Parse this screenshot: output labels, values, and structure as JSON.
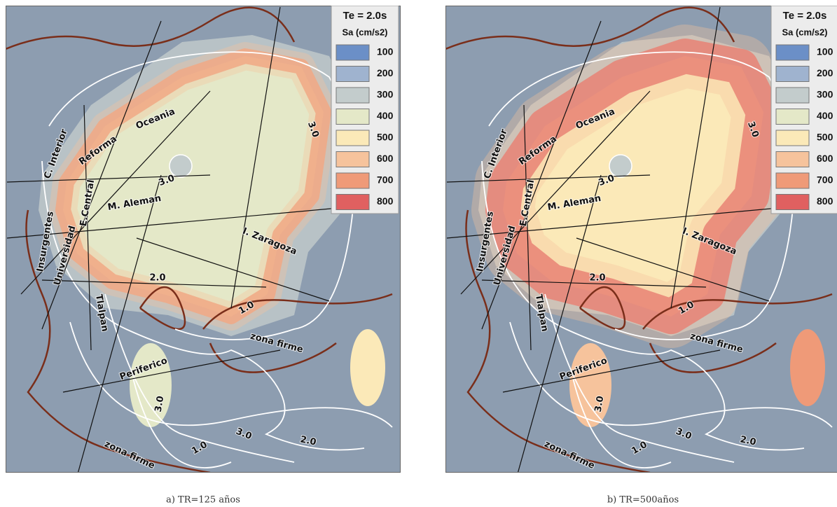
{
  "map_labels": [
    "C. Interior",
    "Reforma",
    "Oceania",
    "3.0",
    "E.Central",
    "M. Aleman",
    "Insurgentes",
    "Universidad",
    "I. Zaragoza",
    "2.0",
    "1.0",
    "Tlalpan",
    "zona firme",
    "Periferico",
    "3.0",
    "3.0",
    "2.0",
    "1.0",
    "zona firme",
    "3.0"
  ],
  "legend": {
    "title": "Te = 2.0s",
    "subtitle": "Sa (cm/s2)",
    "items": [
      {
        "label": "100",
        "color": "#6b8fc7"
      },
      {
        "label": "200",
        "color": "#9fb3cf"
      },
      {
        "label": "300",
        "color": "#c3cccc"
      },
      {
        "label": "400",
        "color": "#e4e8c8"
      },
      {
        "label": "500",
        "color": "#fbe9b8"
      },
      {
        "label": "600",
        "color": "#f6c39c"
      },
      {
        "label": "700",
        "color": "#ef9a78"
      },
      {
        "label": "800",
        "color": "#e06060"
      }
    ]
  },
  "panels": [
    {
      "caption": "a) TR=125 años"
    },
    {
      "caption": "b) TR=500años"
    }
  ]
}
